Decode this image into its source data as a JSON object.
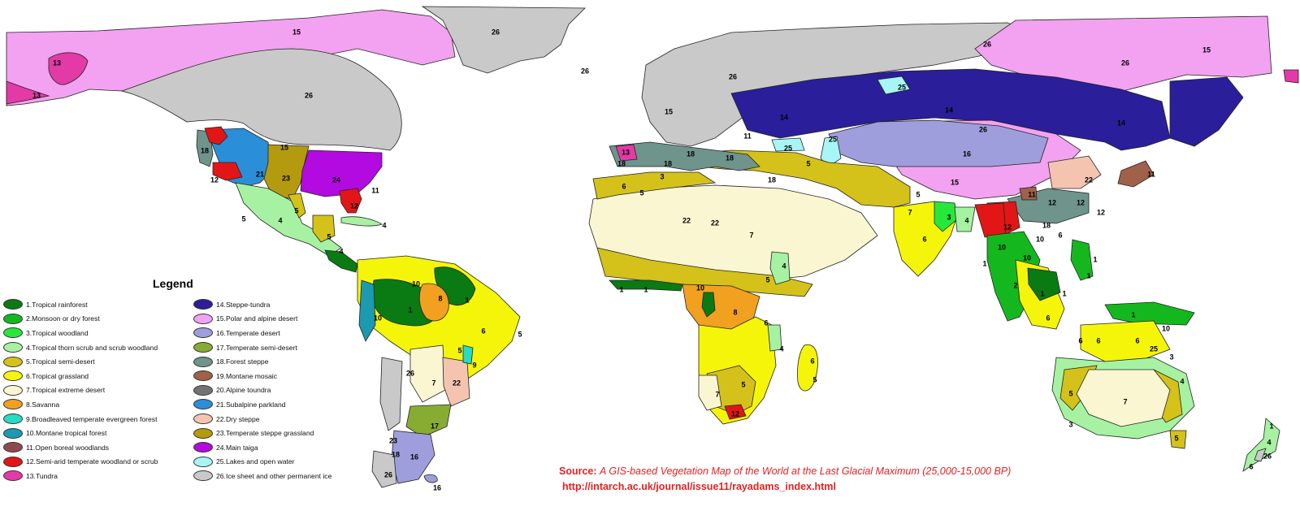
{
  "legend": {
    "title": "Legend",
    "items": [
      {
        "label": "1.Tropical rainforest",
        "color": "#0a7a12"
      },
      {
        "label": "2.Monsoon or dry forest",
        "color": "#14b81e"
      },
      {
        "label": "3.Tropical woodland",
        "color": "#27e83a"
      },
      {
        "label": "4.Tropical thorn scrub and scrub woodland",
        "color": "#a6f2a2"
      },
      {
        "label": "5.Tropical semi-desert",
        "color": "#d4c21a"
      },
      {
        "label": "6.Tropical grassland",
        "color": "#f5f50a"
      },
      {
        "label": "7.Tropical extreme desert",
        "color": "#fbf6d2"
      },
      {
        "label": "8.Savanna",
        "color": "#f2a020"
      },
      {
        "label": "9.Broadleaved temperate evergreen forest",
        "color": "#27dcc0"
      },
      {
        "label": "10.Montane tropical forest",
        "color": "#1b9ab0"
      },
      {
        "label": "11.Open boreal woodlands",
        "color": "#8f4a50"
      },
      {
        "label": "12.Semi-arid temperate woodland or scrub",
        "color": "#e21616"
      },
      {
        "label": "13.Tundra",
        "color": "#e33aa8"
      },
      {
        "label": "14.Steppe-tundra",
        "color": "#2a1e9a"
      },
      {
        "label": "15.Polar and alpine desert",
        "color": "#f2a2f0"
      },
      {
        "label": "16.Temperate desert",
        "color": "#9e9edc"
      },
      {
        "label": "17.Temperate semi-desert",
        "color": "#88ac32"
      },
      {
        "label": "18.Forest steppe",
        "color": "#6e948c"
      },
      {
        "label": "19.Montane mosaic",
        "color": "#a0604a"
      },
      {
        "label": "20.Alpine toundra",
        "color": "#737373"
      },
      {
        "label": "21.Subalpine parkland",
        "color": "#2a8ed8"
      },
      {
        "label": "22.Dry steppe",
        "color": "#f5c4b0"
      },
      {
        "label": "23.Temperate steppe grassland",
        "color": "#b49a0e"
      },
      {
        "label": "24.Main taiga",
        "color": "#b20ae0"
      },
      {
        "label": "25.Lakes and open water",
        "color": "#a8f5f5"
      },
      {
        "label": "26.Ice sheet and other permanent ice",
        "color": "#c9c9c9"
      }
    ]
  },
  "source": {
    "lead": "Source:",
    "title": "A GIS-based Vegetation Map of the World at the Last Glacial Maximum (25,000-15,000 BP)",
    "url": "http://intarch.ac.uk/journal/issue11/rayadams_index.html"
  },
  "map_labels": [
    "1",
    "2",
    "3",
    "4",
    "5",
    "6",
    "7",
    "8",
    "9",
    "10",
    "11",
    "12",
    "13",
    "14",
    "15",
    "16",
    "17",
    "18",
    "19",
    "20",
    "21",
    "22",
    "23",
    "24",
    "25",
    "26"
  ]
}
